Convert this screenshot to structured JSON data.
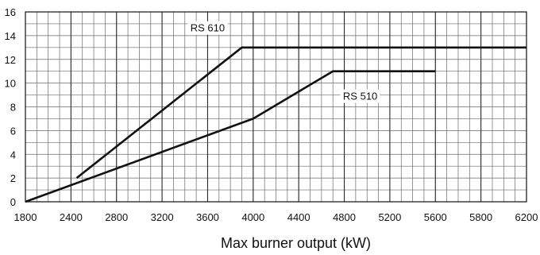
{
  "chart_data": {
    "type": "line",
    "title": "",
    "xlabel": "Max burner output (kW)",
    "ylabel": "",
    "xlim": [
      1800,
      6200
    ],
    "ylim": [
      0,
      16
    ],
    "grid": true,
    "x_tick_labels": [
      "1800",
      "2400",
      "2800",
      "3200",
      "3600",
      "4000",
      "4400",
      "4800",
      "5200",
      "5600",
      "5800",
      "6200"
    ],
    "y_ticks": [
      0,
      2,
      4,
      6,
      8,
      10,
      12,
      14,
      16
    ],
    "series": [
      {
        "name": "RS 610",
        "x": [
          2250,
          3700,
          6200
        ],
        "y": [
          2,
          13,
          13
        ]
      },
      {
        "name": "RS 510",
        "x": [
          1800,
          3800,
          4500,
          5400
        ],
        "y": [
          0,
          7,
          11,
          11
        ]
      }
    ]
  }
}
